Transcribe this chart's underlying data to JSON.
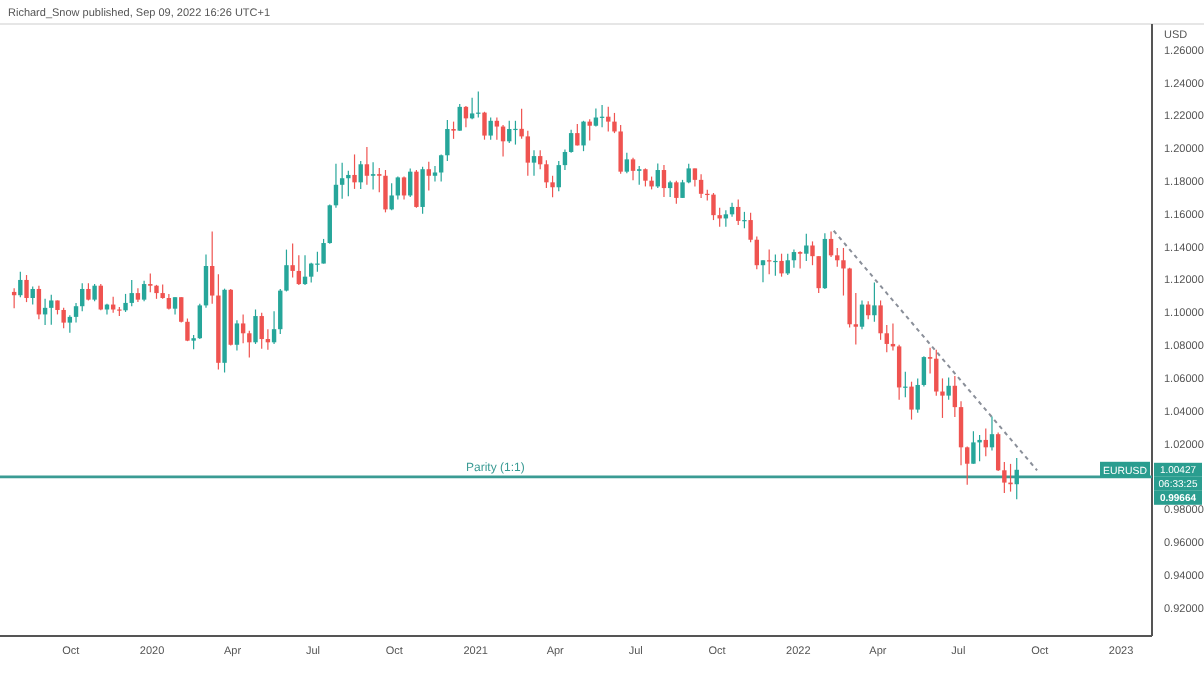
{
  "chart_data": {
    "type": "candlestick",
    "title": "Richard_Snow published, Sep 09, 2022 16:26 UTC+1",
    "ylabel": "USD",
    "x": [
      "2019-07-29",
      "2019-08-05",
      "2019-08-12",
      "2019-08-19",
      "2019-08-26",
      "2019-09-02",
      "2019-09-09",
      "2019-09-16",
      "2019-09-23",
      "2019-09-30",
      "2019-10-07",
      "2019-10-14",
      "2019-10-21",
      "2019-10-28",
      "2019-11-04",
      "2019-11-11",
      "2019-11-18",
      "2019-11-25",
      "2019-12-02",
      "2019-12-09",
      "2019-12-16",
      "2019-12-23",
      "2019-12-30",
      "2020-01-06",
      "2020-01-13",
      "2020-01-20",
      "2020-01-27",
      "2020-02-03",
      "2020-02-10",
      "2020-02-17",
      "2020-02-24",
      "2020-03-02",
      "2020-03-09",
      "2020-03-16",
      "2020-03-23",
      "2020-03-30",
      "2020-04-06",
      "2020-04-13",
      "2020-04-20",
      "2020-04-27",
      "2020-05-04",
      "2020-05-11",
      "2020-05-18",
      "2020-05-25",
      "2020-06-01",
      "2020-06-08",
      "2020-06-15",
      "2020-06-22",
      "2020-06-29",
      "2020-07-06",
      "2020-07-13",
      "2020-07-20",
      "2020-07-27",
      "2020-08-03",
      "2020-08-10",
      "2020-08-17",
      "2020-08-24",
      "2020-08-31",
      "2020-09-07",
      "2020-09-14",
      "2020-09-21",
      "2020-09-28",
      "2020-10-05",
      "2020-10-12",
      "2020-10-19",
      "2020-10-26",
      "2020-11-02",
      "2020-11-09",
      "2020-11-16",
      "2020-11-23",
      "2020-11-30",
      "2020-12-07",
      "2020-12-14",
      "2020-12-21",
      "2020-12-28",
      "2021-01-04",
      "2021-01-11",
      "2021-01-18",
      "2021-01-25",
      "2021-02-01",
      "2021-02-08",
      "2021-02-15",
      "2021-02-22",
      "2021-03-01",
      "2021-03-08",
      "2021-03-15",
      "2021-03-22",
      "2021-03-29",
      "2021-04-05",
      "2021-04-12",
      "2021-04-19",
      "2021-04-26",
      "2021-05-03",
      "2021-05-10",
      "2021-05-17",
      "2021-05-24",
      "2021-05-31",
      "2021-06-07",
      "2021-06-14",
      "2021-06-21",
      "2021-06-28",
      "2021-07-05",
      "2021-07-12",
      "2021-07-19",
      "2021-07-26",
      "2021-08-02",
      "2021-08-09",
      "2021-08-16",
      "2021-08-23",
      "2021-08-30",
      "2021-09-06",
      "2021-09-13",
      "2021-09-20",
      "2021-09-27",
      "2021-10-04",
      "2021-10-11",
      "2021-10-18",
      "2021-10-25",
      "2021-11-01",
      "2021-11-08",
      "2021-11-15",
      "2021-11-22",
      "2021-11-29",
      "2021-12-06",
      "2021-12-13",
      "2021-12-20",
      "2021-12-27",
      "2022-01-03",
      "2022-01-10",
      "2022-01-17",
      "2022-01-24",
      "2022-01-31",
      "2022-02-07",
      "2022-02-14",
      "2022-02-21",
      "2022-02-28",
      "2022-03-07",
      "2022-03-14",
      "2022-03-21",
      "2022-03-28",
      "2022-04-04",
      "2022-04-11",
      "2022-04-18",
      "2022-04-25",
      "2022-05-02",
      "2022-05-09",
      "2022-05-16",
      "2022-05-23",
      "2022-05-30",
      "2022-06-06",
      "2022-06-13",
      "2022-06-20",
      "2022-06-27",
      "2022-07-04",
      "2022-07-11",
      "2022-07-18",
      "2022-07-25",
      "2022-08-01",
      "2022-08-08",
      "2022-08-15",
      "2022-08-22",
      "2022-08-29",
      "2022-09-05"
    ],
    "ohlc": [
      [
        1.1127,
        1.115,
        1.1027,
        1.1107
      ],
      [
        1.1107,
        1.125,
        1.1095,
        1.12
      ],
      [
        1.12,
        1.123,
        1.1065,
        1.109
      ],
      [
        1.109,
        1.116,
        1.105,
        1.1145
      ],
      [
        1.1145,
        1.1165,
        1.096,
        1.099
      ],
      [
        1.099,
        1.1085,
        1.0926,
        1.103
      ],
      [
        1.103,
        1.111,
        1.0927,
        1.1075
      ],
      [
        1.1075,
        1.1075,
        1.099,
        1.1017
      ],
      [
        1.1017,
        1.103,
        1.0905,
        1.094
      ],
      [
        1.094,
        1.0985,
        1.0879,
        1.0975
      ],
      [
        1.0975,
        1.106,
        1.094,
        1.104
      ],
      [
        1.104,
        1.118,
        1.101,
        1.1145
      ],
      [
        1.1145,
        1.118,
        1.1075,
        1.108
      ],
      [
        1.108,
        1.1175,
        1.107,
        1.1165
      ],
      [
        1.1165,
        1.1176,
        1.1015,
        1.102
      ],
      [
        1.102,
        1.1055,
        1.099,
        1.105
      ],
      [
        1.105,
        1.1097,
        1.1,
        1.102
      ],
      [
        1.102,
        1.1035,
        1.0981,
        1.1015
      ],
      [
        1.1015,
        1.1115,
        1.1005,
        1.106
      ],
      [
        1.106,
        1.12,
        1.104,
        1.112
      ],
      [
        1.112,
        1.115,
        1.1065,
        1.108
      ],
      [
        1.108,
        1.1195,
        1.107,
        1.1175
      ],
      [
        1.1175,
        1.124,
        1.1125,
        1.1165
      ],
      [
        1.1165,
        1.117,
        1.1085,
        1.112
      ],
      [
        1.112,
        1.1173,
        1.1085,
        1.109
      ],
      [
        1.109,
        1.1115,
        1.102,
        1.1025
      ],
      [
        1.1025,
        1.1095,
        1.099,
        1.1095
      ],
      [
        1.1095,
        1.1095,
        1.094,
        1.0945
      ],
      [
        1.0945,
        1.0965,
        1.0827,
        1.083
      ],
      [
        1.083,
        1.0865,
        1.0778,
        1.0845
      ],
      [
        1.0845,
        1.1055,
        1.084,
        1.1045
      ],
      [
        1.1045,
        1.1355,
        1.103,
        1.1285
      ],
      [
        1.1285,
        1.1495,
        1.1055,
        1.1105
      ],
      [
        1.1105,
        1.1235,
        1.0655,
        1.0695
      ],
      [
        1.0695,
        1.1147,
        1.0636,
        1.114
      ],
      [
        1.114,
        1.1145,
        1.08,
        1.0805
      ],
      [
        1.0805,
        1.0955,
        1.077,
        1.0935
      ],
      [
        1.0935,
        1.099,
        1.0815,
        1.0875
      ],
      [
        1.0875,
        1.089,
        1.0727,
        1.082
      ],
      [
        1.082,
        1.102,
        1.081,
        1.098
      ],
      [
        1.098,
        1.1,
        1.078,
        1.084
      ],
      [
        1.084,
        1.09,
        1.0775,
        1.082
      ],
      [
        1.082,
        1.101,
        1.081,
        1.09
      ],
      [
        1.09,
        1.1145,
        1.087,
        1.1135
      ],
      [
        1.1135,
        1.1385,
        1.113,
        1.129
      ],
      [
        1.129,
        1.1422,
        1.1215,
        1.1255
      ],
      [
        1.1255,
        1.135,
        1.117,
        1.1175
      ],
      [
        1.1175,
        1.135,
        1.117,
        1.122
      ],
      [
        1.122,
        1.1305,
        1.1185,
        1.13
      ],
      [
        1.13,
        1.1372,
        1.125,
        1.13
      ],
      [
        1.13,
        1.145,
        1.13,
        1.1425
      ],
      [
        1.1425,
        1.166,
        1.142,
        1.1655
      ],
      [
        1.1655,
        1.1909,
        1.164,
        1.178
      ],
      [
        1.178,
        1.1915,
        1.1695,
        1.182
      ],
      [
        1.182,
        1.1865,
        1.171,
        1.184
      ],
      [
        1.184,
        1.1965,
        1.1755,
        1.1795
      ],
      [
        1.1795,
        1.1925,
        1.1755,
        1.1905
      ],
      [
        1.1905,
        1.2011,
        1.178,
        1.1835
      ],
      [
        1.1835,
        1.1917,
        1.1752,
        1.1845
      ],
      [
        1.1845,
        1.1883,
        1.1735,
        1.1835
      ],
      [
        1.1835,
        1.187,
        1.1612,
        1.163
      ],
      [
        1.163,
        1.179,
        1.1625,
        1.1715
      ],
      [
        1.1715,
        1.183,
        1.169,
        1.1825
      ],
      [
        1.1825,
        1.183,
        1.169,
        1.1715
      ],
      [
        1.1715,
        1.188,
        1.1705,
        1.186
      ],
      [
        1.186,
        1.187,
        1.164,
        1.1645
      ],
      [
        1.1645,
        1.189,
        1.1603,
        1.1875
      ],
      [
        1.1875,
        1.192,
        1.1745,
        1.1835
      ],
      [
        1.1835,
        1.1895,
        1.18,
        1.1855
      ],
      [
        1.1855,
        1.1965,
        1.18,
        1.196
      ],
      [
        1.196,
        1.2175,
        1.1925,
        1.212
      ],
      [
        1.212,
        1.2165,
        1.206,
        1.211
      ],
      [
        1.211,
        1.2273,
        1.211,
        1.2255
      ],
      [
        1.2255,
        1.226,
        1.213,
        1.2185
      ],
      [
        1.2185,
        1.231,
        1.218,
        1.2215
      ],
      [
        1.2215,
        1.2349,
        1.219,
        1.222
      ],
      [
        1.222,
        1.2225,
        1.2055,
        1.208
      ],
      [
        1.208,
        1.219,
        1.2055,
        1.217
      ],
      [
        1.217,
        1.219,
        1.2055,
        1.2135
      ],
      [
        1.2135,
        1.2145,
        1.1952,
        1.2045
      ],
      [
        1.2045,
        1.217,
        1.2035,
        1.212
      ],
      [
        1.212,
        1.217,
        1.2025,
        1.2121
      ],
      [
        1.2121,
        1.2243,
        1.206,
        1.2075
      ],
      [
        1.2075,
        1.211,
        1.1835,
        1.1915
      ],
      [
        1.1915,
        1.199,
        1.1835,
        1.1955
      ],
      [
        1.1955,
        1.199,
        1.1875,
        1.1905
      ],
      [
        1.1905,
        1.193,
        1.176,
        1.1795
      ],
      [
        1.1795,
        1.1835,
        1.1704,
        1.1765
      ],
      [
        1.1765,
        1.1925,
        1.174,
        1.19
      ],
      [
        1.19,
        1.1995,
        1.187,
        1.198
      ],
      [
        1.198,
        1.2115,
        1.1975,
        1.2095
      ],
      [
        1.2095,
        1.215,
        1.202,
        1.202
      ],
      [
        1.202,
        1.217,
        1.1985,
        1.2165
      ],
      [
        1.2165,
        1.218,
        1.205,
        1.214
      ],
      [
        1.214,
        1.2245,
        1.2135,
        1.219
      ],
      [
        1.219,
        1.2266,
        1.213,
        1.2195
      ],
      [
        1.2195,
        1.2255,
        1.2105,
        1.2165
      ],
      [
        1.2165,
        1.2218,
        1.2095,
        1.2105
      ],
      [
        1.2105,
        1.2145,
        1.1847,
        1.186
      ],
      [
        1.186,
        1.1975,
        1.185,
        1.1935
      ],
      [
        1.1935,
        1.1945,
        1.1807,
        1.1865
      ],
      [
        1.1865,
        1.1895,
        1.178,
        1.1875
      ],
      [
        1.1875,
        1.188,
        1.177,
        1.1805
      ],
      [
        1.1805,
        1.183,
        1.1752,
        1.177
      ],
      [
        1.177,
        1.191,
        1.176,
        1.187
      ],
      [
        1.187,
        1.19,
        1.1705,
        1.176
      ],
      [
        1.176,
        1.1805,
        1.1705,
        1.1795
      ],
      [
        1.1795,
        1.1805,
        1.1664,
        1.17
      ],
      [
        1.17,
        1.181,
        1.17,
        1.1795
      ],
      [
        1.1795,
        1.1909,
        1.179,
        1.188
      ],
      [
        1.188,
        1.188,
        1.177,
        1.181
      ],
      [
        1.181,
        1.1845,
        1.17,
        1.1725
      ],
      [
        1.1725,
        1.175,
        1.1685,
        1.172
      ],
      [
        1.172,
        1.173,
        1.1565,
        1.1595
      ],
      [
        1.1595,
        1.164,
        1.1525,
        1.1575
      ],
      [
        1.1575,
        1.1625,
        1.1525,
        1.16
      ],
      [
        1.16,
        1.167,
        1.1585,
        1.1645
      ],
      [
        1.1645,
        1.169,
        1.1535,
        1.156
      ],
      [
        1.156,
        1.1615,
        1.1515,
        1.1565
      ],
      [
        1.1565,
        1.161,
        1.143,
        1.1445
      ],
      [
        1.1445,
        1.1465,
        1.1265,
        1.129
      ],
      [
        1.129,
        1.132,
        1.1186,
        1.132
      ],
      [
        1.132,
        1.1385,
        1.1235,
        1.1315
      ],
      [
        1.1315,
        1.1355,
        1.1225,
        1.1316
      ],
      [
        1.1316,
        1.136,
        1.122,
        1.124
      ],
      [
        1.124,
        1.136,
        1.123,
        1.132
      ],
      [
        1.132,
        1.1385,
        1.1275,
        1.137
      ],
      [
        1.137,
        1.1375,
        1.127,
        1.136
      ],
      [
        1.136,
        1.1482,
        1.1315,
        1.141
      ],
      [
        1.141,
        1.1435,
        1.129,
        1.1345
      ],
      [
        1.1345,
        1.1345,
        1.1121,
        1.115
      ],
      [
        1.115,
        1.1485,
        1.1145,
        1.145
      ],
      [
        1.145,
        1.1495,
        1.134,
        1.135
      ],
      [
        1.135,
        1.1395,
        1.128,
        1.132
      ],
      [
        1.132,
        1.1395,
        1.1105,
        1.127
      ],
      [
        1.127,
        1.1275,
        1.091,
        1.093
      ],
      [
        1.093,
        1.112,
        1.0806,
        1.0915
      ],
      [
        1.0915,
        1.1075,
        1.09,
        1.105
      ],
      [
        1.105,
        1.107,
        1.096,
        1.0985
      ],
      [
        1.0985,
        1.1185,
        1.0945,
        1.1045
      ],
      [
        1.1045,
        1.1075,
        1.0835,
        1.0875
      ],
      [
        1.0875,
        1.0925,
        1.076,
        1.081
      ],
      [
        1.081,
        1.0935,
        1.077,
        1.0795
      ],
      [
        1.0795,
        1.0805,
        1.047,
        1.0545
      ],
      [
        1.0545,
        1.064,
        1.0485,
        1.055
      ],
      [
        1.055,
        1.058,
        1.0349,
        1.041
      ],
      [
        1.041,
        1.06,
        1.039,
        1.056
      ],
      [
        1.056,
        1.0735,
        1.055,
        1.073
      ],
      [
        1.073,
        1.0787,
        1.063,
        1.072
      ],
      [
        1.072,
        1.0775,
        1.0495,
        1.052
      ],
      [
        1.052,
        1.06,
        1.0359,
        1.0495
      ],
      [
        1.0495,
        1.0605,
        1.047,
        1.0555
      ],
      [
        1.0555,
        1.0615,
        1.0365,
        1.0425
      ],
      [
        1.0425,
        1.046,
        1.007,
        1.018
      ],
      [
        1.018,
        1.0185,
        0.9952,
        1.008
      ],
      [
        1.008,
        1.0278,
        1.008,
        1.021
      ],
      [
        1.021,
        1.0255,
        1.0095,
        1.0225
      ],
      [
        1.0225,
        1.0295,
        1.0125,
        1.018
      ],
      [
        1.018,
        1.0368,
        1.016,
        1.026
      ],
      [
        1.026,
        1.027,
        1.0035,
        1.004
      ],
      [
        1.004,
        1.009,
        0.9901,
        0.9965
      ],
      [
        0.9965,
        1.0079,
        0.991,
        0.9955
      ],
      [
        0.9955,
        1.0115,
        0.9864,
        1.0043
      ]
    ],
    "series": [
      {
        "type": "line",
        "x": [
          "2022-02-10",
          "2022-09-28"
        ],
        "values": [
          1.15,
          1.004
        ],
        "color": "#8a8f99",
        "line_style": "dashed"
      }
    ],
    "ref_lines": [
      {
        "axis": "y",
        "value": 1.0,
        "label": "Parity (1:1)",
        "color": "#3a9b94"
      }
    ],
    "annotations": [
      "EURUSD",
      "1.00427",
      "06:33:25",
      "0.99664"
    ],
    "xlim": [
      "2019-07-13",
      "2023-02-05"
    ],
    "xticks": [
      {
        "value": "2019-10-01",
        "label": "Oct"
      },
      {
        "value": "2020-01-01",
        "label": "2020"
      },
      {
        "value": "2020-04-01",
        "label": "Apr"
      },
      {
        "value": "2020-07-01",
        "label": "Jul"
      },
      {
        "value": "2020-10-01",
        "label": "Oct"
      },
      {
        "value": "2021-01-01",
        "label": "2021"
      },
      {
        "value": "2021-04-01",
        "label": "Apr"
      },
      {
        "value": "2021-07-01",
        "label": "Jul"
      },
      {
        "value": "2021-10-01",
        "label": "Oct"
      },
      {
        "value": "2022-01-01",
        "label": "2022"
      },
      {
        "value": "2022-04-01",
        "label": "Apr"
      },
      {
        "value": "2022-07-01",
        "label": "Jul"
      },
      {
        "value": "2022-10-01",
        "label": "Oct"
      },
      {
        "value": "2023-01-01",
        "label": "2023"
      }
    ],
    "ylim": [
      0.903,
      1.276
    ],
    "yticks": [
      {
        "value": 0.92,
        "label": "0.92000"
      },
      {
        "value": 0.94,
        "label": "0.94000"
      },
      {
        "value": 0.96,
        "label": "0.96000"
      },
      {
        "value": 0.98,
        "label": "0.98000"
      },
      {
        "value": 1.02,
        "label": "1.02000"
      },
      {
        "value": 1.04,
        "label": "1.04000"
      },
      {
        "value": 1.06,
        "label": "1.06000"
      },
      {
        "value": 1.08,
        "label": "1.08000"
      },
      {
        "value": 1.1,
        "label": "1.10000"
      },
      {
        "value": 1.12,
        "label": "1.12000"
      },
      {
        "value": 1.14,
        "label": "1.14000"
      },
      {
        "value": 1.16,
        "label": "1.16000"
      },
      {
        "value": 1.18,
        "label": "1.18000"
      },
      {
        "value": 1.2,
        "label": "1.20000"
      },
      {
        "value": 1.22,
        "label": "1.22000"
      },
      {
        "value": 1.24,
        "label": "1.24000"
      },
      {
        "value": 1.26,
        "label": "1.26000"
      }
    ]
  }
}
